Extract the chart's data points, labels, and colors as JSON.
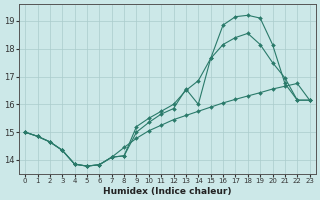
{
  "xlabel": "Humidex (Indice chaleur)",
  "bg_color": "#cce8e8",
  "grid_color": "#aacccc",
  "line_color": "#2a7a6a",
  "xlim": [
    -0.5,
    23.5
  ],
  "ylim": [
    13.5,
    19.6
  ],
  "xticks": [
    0,
    1,
    2,
    3,
    4,
    5,
    6,
    7,
    8,
    9,
    10,
    11,
    12,
    13,
    14,
    15,
    16,
    17,
    18,
    19,
    20,
    21,
    22,
    23
  ],
  "yticks": [
    14,
    15,
    16,
    17,
    18,
    19
  ],
  "line1_x": [
    0,
    1,
    2,
    3,
    4,
    5,
    6,
    7,
    8,
    9,
    10,
    11,
    12,
    13,
    14,
    15,
    16,
    17,
    18,
    19,
    20,
    21,
    22,
    23
  ],
  "line1_y": [
    15.0,
    14.85,
    14.65,
    14.35,
    13.85,
    13.78,
    13.83,
    14.1,
    14.15,
    15.2,
    15.5,
    15.75,
    16.0,
    16.5,
    16.85,
    17.65,
    18.15,
    18.4,
    18.55,
    18.15,
    17.5,
    16.95,
    16.15,
    16.15
  ],
  "line2_x": [
    0,
    1,
    2,
    3,
    4,
    5,
    6,
    7,
    8,
    9,
    10,
    11,
    12,
    13,
    14,
    15,
    16,
    17,
    18,
    19,
    20,
    21,
    22,
    23
  ],
  "line2_y": [
    15.0,
    14.85,
    14.65,
    14.35,
    13.85,
    13.78,
    13.83,
    14.1,
    14.15,
    15.0,
    15.35,
    15.65,
    15.85,
    16.55,
    16.0,
    17.65,
    18.85,
    19.15,
    19.2,
    19.1,
    18.15,
    16.75,
    16.15,
    16.15
  ],
  "line3_x": [
    0,
    1,
    2,
    3,
    4,
    5,
    6,
    7,
    8,
    9,
    10,
    11,
    12,
    13,
    14,
    15,
    16,
    17,
    18,
    19,
    20,
    21,
    22,
    23
  ],
  "line3_y": [
    15.0,
    14.85,
    14.65,
    14.35,
    13.85,
    13.78,
    13.83,
    14.1,
    14.45,
    14.78,
    15.05,
    15.25,
    15.45,
    15.6,
    15.75,
    15.9,
    16.05,
    16.18,
    16.3,
    16.42,
    16.55,
    16.65,
    16.75,
    16.15
  ]
}
